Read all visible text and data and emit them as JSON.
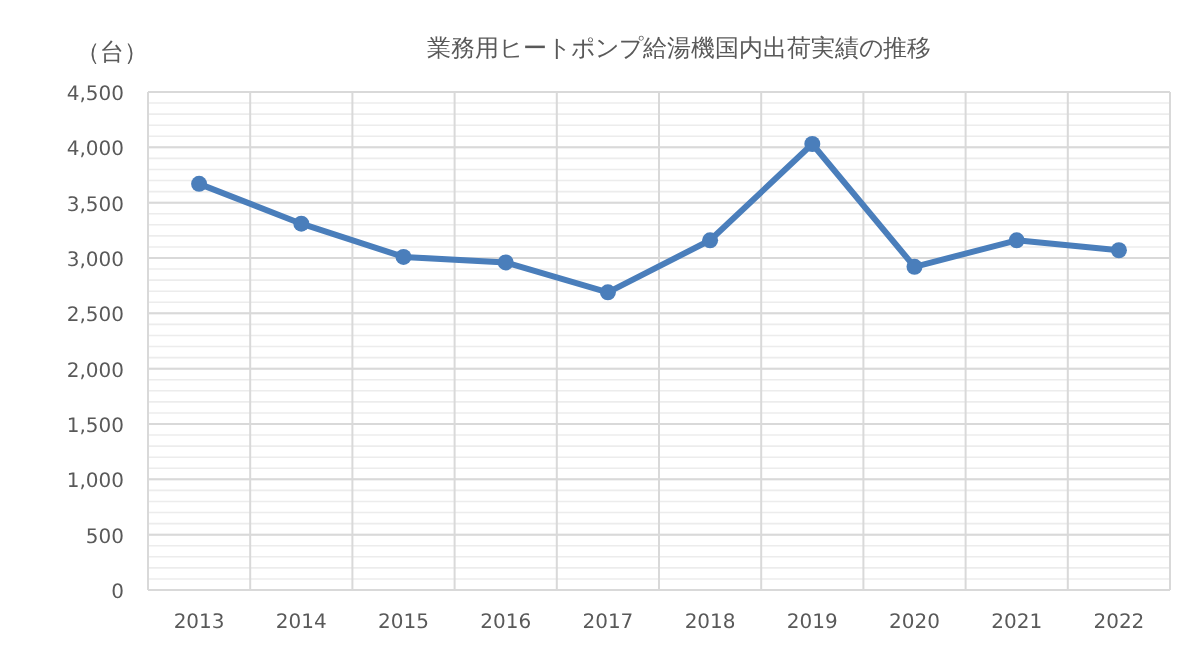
{
  "chart_data": {
    "type": "line",
    "title": "業務用ヒートポンプ給湯機国内出荷実績の推移",
    "ylabel": "（台）",
    "categories": [
      "2013",
      "2014",
      "2015",
      "2016",
      "2017",
      "2018",
      "2019",
      "2020",
      "2021",
      "2022"
    ],
    "series": [
      {
        "color": "#4a7ebb",
        "values": [
          3670,
          3310,
          3010,
          2960,
          2690,
          3160,
          4030,
          2920,
          3160,
          3070
        ]
      }
    ],
    "ylim": [
      0,
      4500
    ],
    "yticks": [
      {
        "value": 0,
        "label": "0"
      },
      {
        "value": 500,
        "label": "500"
      },
      {
        "value": 1000,
        "label": "1,000"
      },
      {
        "value": 1500,
        "label": "1,500"
      },
      {
        "value": 2000,
        "label": "2,000"
      },
      {
        "value": 2500,
        "label": "2,500"
      },
      {
        "value": 3000,
        "label": "3,000"
      },
      {
        "value": 3500,
        "label": "3,500"
      },
      {
        "value": 4000,
        "label": "4,000"
      },
      {
        "value": 4500,
        "label": "4,500"
      }
    ],
    "grid": true,
    "marker": "circle",
    "line_style": "solid"
  }
}
